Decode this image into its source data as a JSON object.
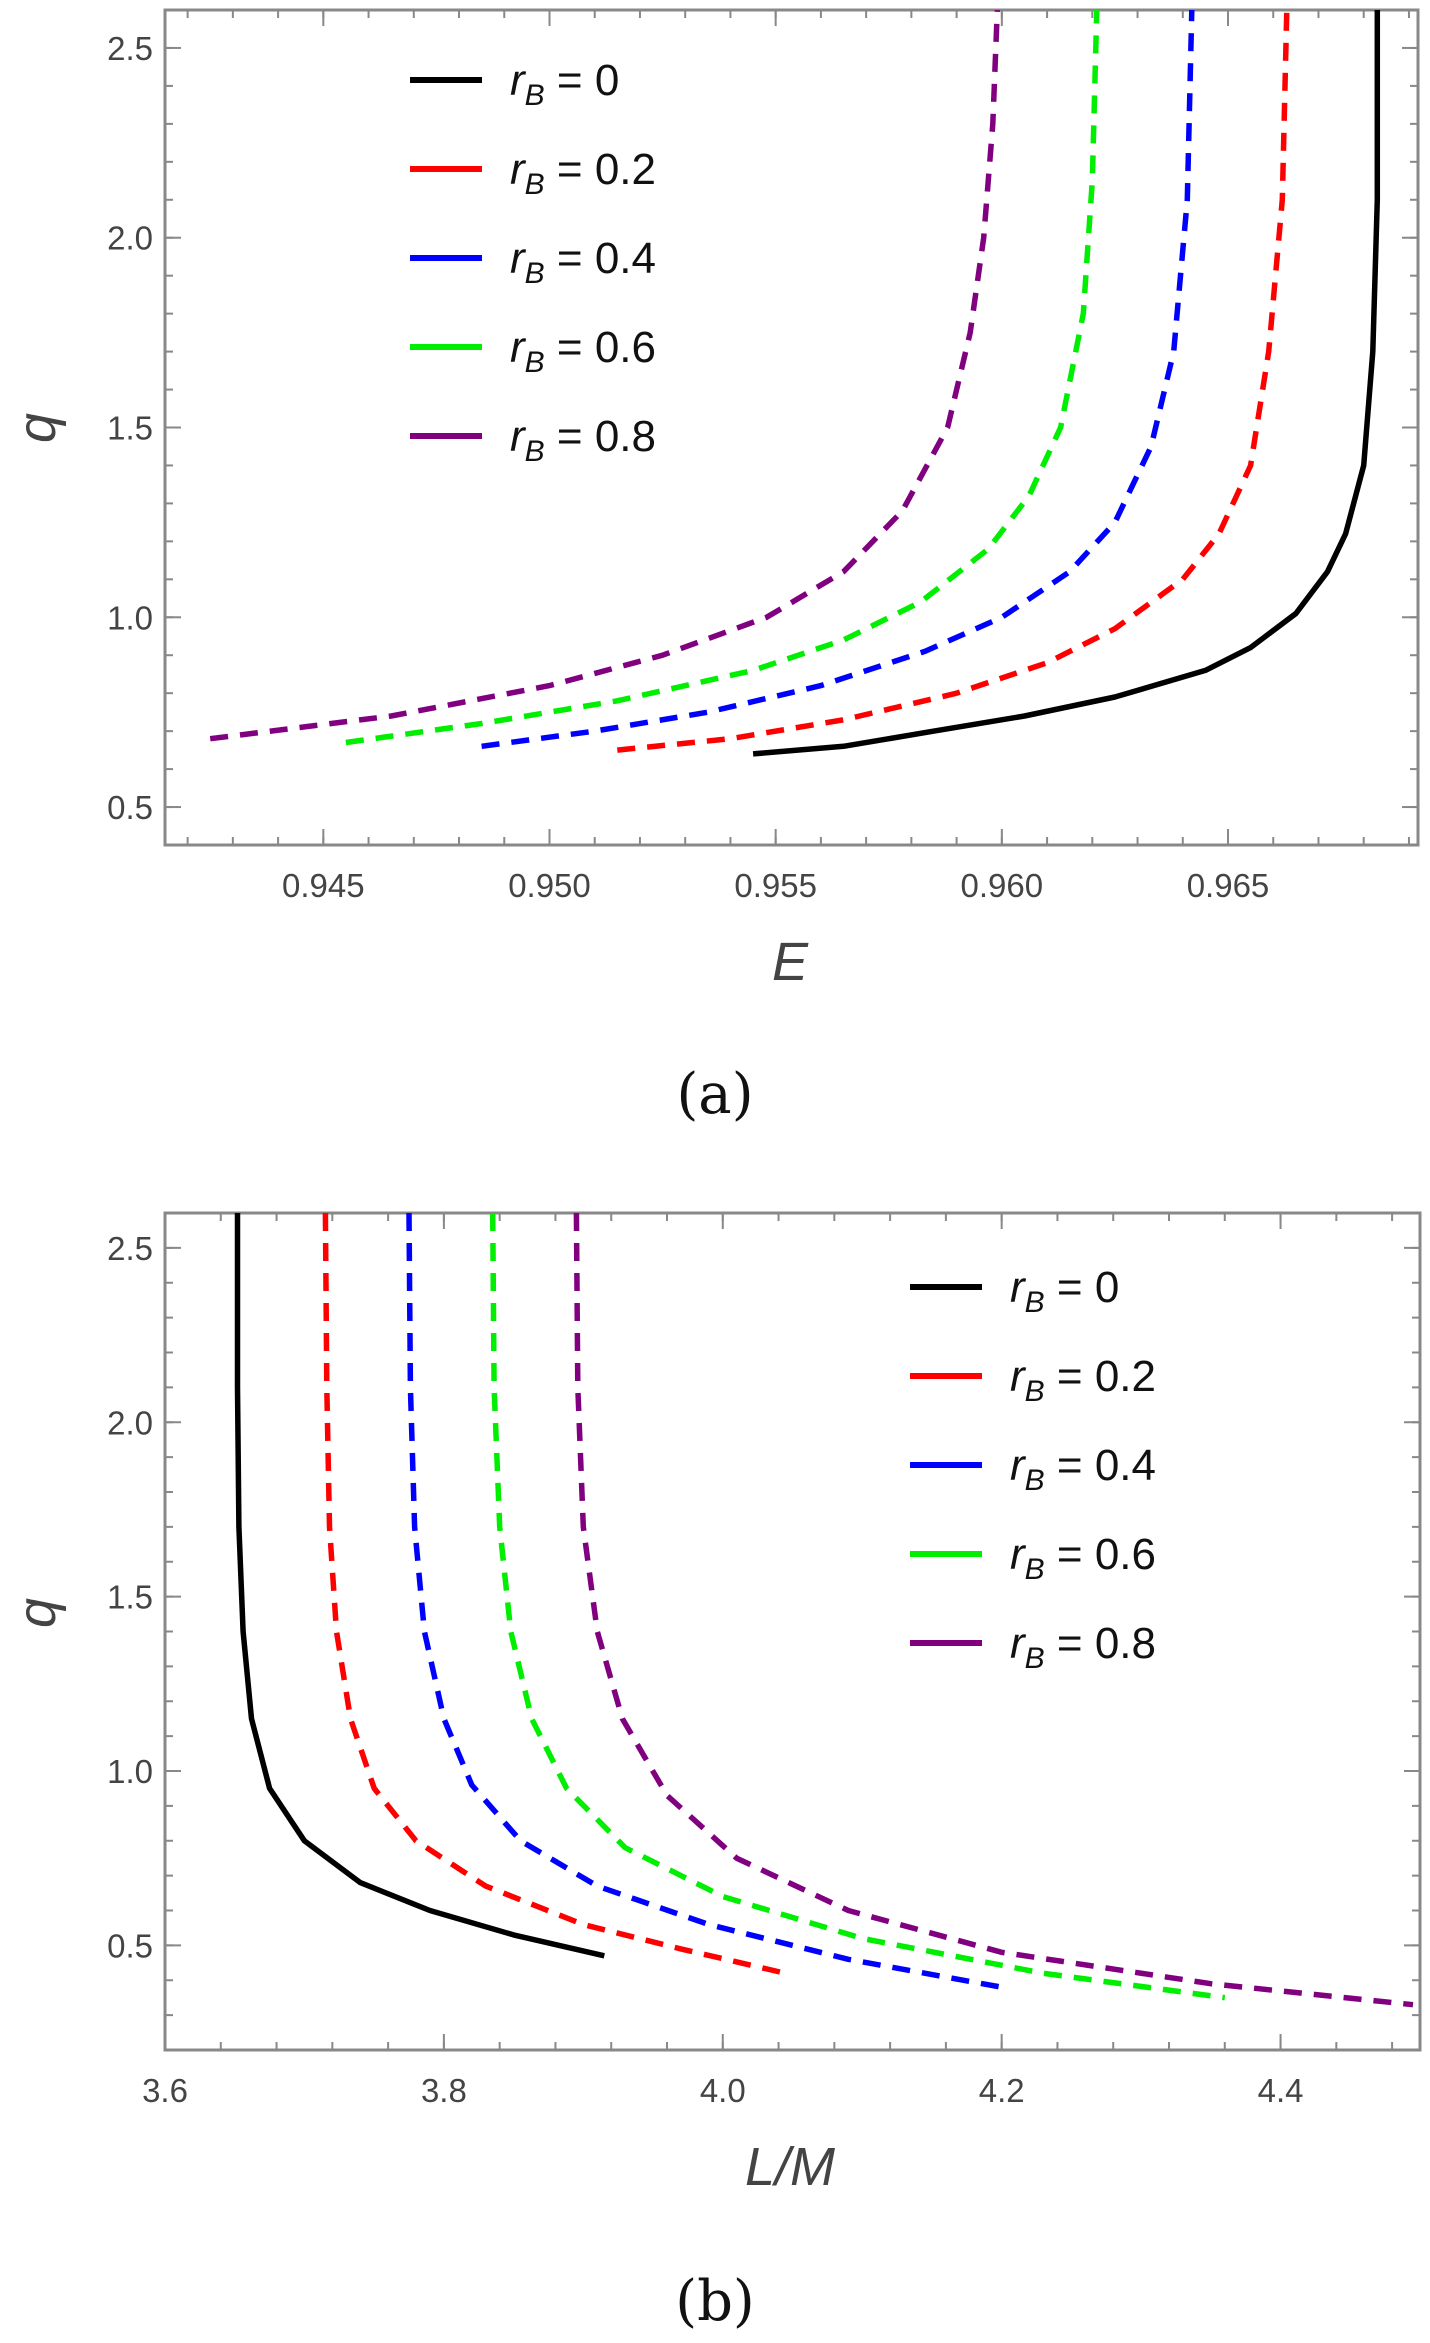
{
  "chart_data": [
    {
      "type": "line",
      "panel": "(a)",
      "xlabel": "E",
      "ylabel": "q",
      "xlim": [
        0.9415,
        0.9692
      ],
      "ylim": [
        0.4,
        2.6
      ],
      "xticks": [
        "0.945",
        "0.950",
        "0.955",
        "0.960",
        "0.965"
      ],
      "yticks": [
        "0.5",
        "1.0",
        "1.5",
        "2.0",
        "2.5"
      ],
      "legend_position": "top-left",
      "legend_prefix": "r",
      "legend_subscript": "B",
      "series": [
        {
          "name": " = 0",
          "color": "#000000",
          "dashed": false,
          "x": [
            0.9545,
            0.9565,
            0.9585,
            0.9605,
            0.9625,
            0.9645,
            0.9655,
            0.9665,
            0.9672,
            0.9676,
            0.968,
            0.9682,
            0.9683,
            0.9683
          ],
          "y": [
            0.64,
            0.66,
            0.7,
            0.74,
            0.79,
            0.86,
            0.92,
            1.01,
            1.12,
            1.22,
            1.4,
            1.7,
            2.1,
            2.6
          ]
        },
        {
          "name": " = 0.2",
          "color": "#ff0000",
          "dashed": true,
          "x": [
            0.9515,
            0.954,
            0.9565,
            0.959,
            0.961,
            0.9625,
            0.964,
            0.9648,
            0.9655,
            0.9659,
            0.9662,
            0.9663
          ],
          "y": [
            0.65,
            0.68,
            0.73,
            0.8,
            0.88,
            0.97,
            1.1,
            1.22,
            1.4,
            1.7,
            2.1,
            2.6
          ]
        },
        {
          "name": " = 0.4",
          "color": "#0000ff",
          "dashed": true,
          "x": [
            0.9485,
            0.951,
            0.9535,
            0.956,
            0.9583,
            0.96,
            0.9615,
            0.9625,
            0.9633,
            0.9638,
            0.9641,
            0.9642
          ],
          "y": [
            0.66,
            0.7,
            0.75,
            0.82,
            0.91,
            1.0,
            1.12,
            1.25,
            1.45,
            1.7,
            2.1,
            2.6
          ]
        },
        {
          "name": " = 0.6",
          "color": "#00ee00",
          "dashed": true,
          "x": [
            0.9455,
            0.9485,
            0.9515,
            0.9545,
            0.9565,
            0.9582,
            0.9597,
            0.9606,
            0.9613,
            0.9618,
            0.962,
            0.9621
          ],
          "y": [
            0.67,
            0.72,
            0.78,
            0.86,
            0.94,
            1.04,
            1.18,
            1.32,
            1.5,
            1.8,
            2.15,
            2.6
          ]
        },
        {
          "name": " = 0.8",
          "color": "#800080",
          "dashed": true,
          "x": [
            0.9425,
            0.9465,
            0.95,
            0.9525,
            0.9548,
            0.9565,
            0.9578,
            0.9588,
            0.9593,
            0.9596,
            0.9598,
            0.9599
          ],
          "y": [
            0.68,
            0.74,
            0.82,
            0.9,
            1.0,
            1.12,
            1.28,
            1.5,
            1.75,
            2.0,
            2.3,
            2.6
          ]
        }
      ]
    },
    {
      "type": "line",
      "panel": "(b)",
      "xlabel": "L/M",
      "ylabel": "q",
      "xlim": [
        3.6,
        4.5
      ],
      "ylim": [
        0.2,
        2.6
      ],
      "xticks": [
        "3.6",
        "3.8",
        "4.0",
        "4.2",
        "4.4"
      ],
      "yticks": [
        "0.5",
        "1.0",
        "1.5",
        "2.0",
        "2.5"
      ],
      "legend_position": "top-right",
      "legend_prefix": "r",
      "legend_subscript": "B",
      "series": [
        {
          "name": " = 0",
          "color": "#000000",
          "dashed": false,
          "x": [
            3.652,
            3.652,
            3.653,
            3.656,
            3.662,
            3.675,
            3.7,
            3.74,
            3.79,
            3.85,
            3.915
          ],
          "y": [
            2.6,
            2.1,
            1.7,
            1.4,
            1.15,
            0.95,
            0.8,
            0.68,
            0.6,
            0.53,
            0.47
          ]
        },
        {
          "name": " = 0.2",
          "color": "#ff0000",
          "dashed": true,
          "x": [
            3.715,
            3.716,
            3.718,
            3.723,
            3.733,
            3.75,
            3.78,
            3.83,
            3.9,
            3.97,
            4.045
          ],
          "y": [
            2.6,
            2.1,
            1.7,
            1.4,
            1.15,
            0.95,
            0.8,
            0.67,
            0.56,
            0.49,
            0.42
          ]
        },
        {
          "name": " = 0.4",
          "color": "#0000ff",
          "dashed": true,
          "x": [
            3.775,
            3.776,
            3.779,
            3.786,
            3.8,
            3.82,
            3.855,
            3.91,
            3.99,
            4.09,
            4.2
          ],
          "y": [
            2.6,
            2.1,
            1.7,
            1.4,
            1.15,
            0.96,
            0.8,
            0.67,
            0.56,
            0.46,
            0.38
          ]
        },
        {
          "name": " = 0.6",
          "color": "#00ee00",
          "dashed": true,
          "x": [
            3.835,
            3.836,
            3.84,
            3.848,
            3.863,
            3.888,
            3.93,
            4.0,
            4.1,
            4.23,
            4.36
          ],
          "y": [
            2.6,
            2.1,
            1.7,
            1.4,
            1.15,
            0.95,
            0.78,
            0.64,
            0.52,
            0.42,
            0.35
          ]
        },
        {
          "name": " = 0.8",
          "color": "#800080",
          "dashed": true,
          "x": [
            3.895,
            3.896,
            3.9,
            3.91,
            3.928,
            3.96,
            4.01,
            4.09,
            4.2,
            4.35,
            4.495
          ],
          "y": [
            2.6,
            2.1,
            1.7,
            1.4,
            1.15,
            0.93,
            0.75,
            0.6,
            0.48,
            0.39,
            0.33
          ]
        }
      ]
    }
  ]
}
